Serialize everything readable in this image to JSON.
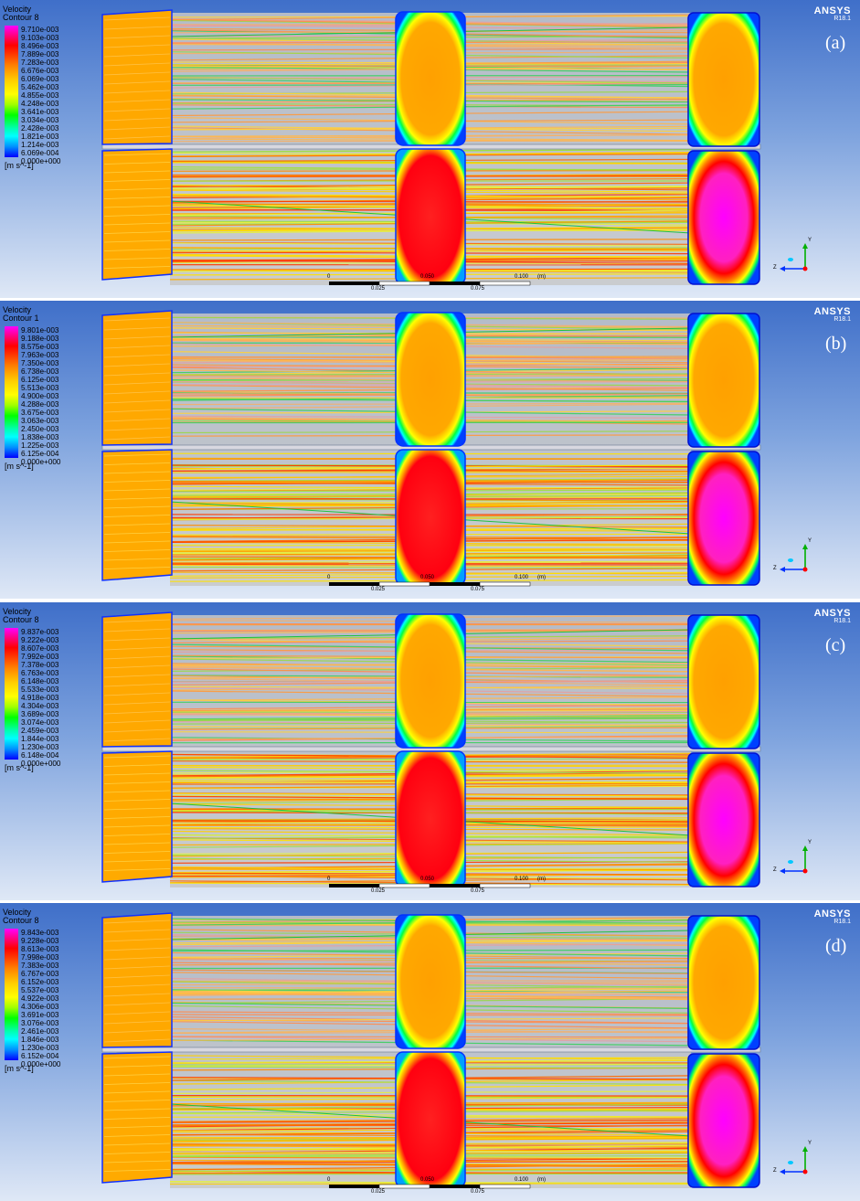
{
  "figure": {
    "brand": "ANSYS",
    "version": "R18.1",
    "panels": [
      {
        "label": "(a)",
        "legend_title": "Velocity",
        "legend_subtitle": "Contour 8",
        "ticks": [
          "9.710e-003",
          "9.103e-003",
          "8.496e-003",
          "7.889e-003",
          "7.283e-003",
          "6.676e-003",
          "6.069e-003",
          "5.462e-003",
          "4.855e-003",
          "4.248e-003",
          "3.641e-003",
          "3.034e-003",
          "2.428e-003",
          "1.821e-003",
          "1.214e-003",
          "6.069e-004",
          "0.000e+000"
        ],
        "unit": "[m s^-1]"
      },
      {
        "label": "(b)",
        "legend_title": "Velocity",
        "legend_subtitle": "Contour 1",
        "ticks": [
          "9.801e-003",
          "9.188e-003",
          "8.575e-003",
          "7.963e-003",
          "7.350e-003",
          "6.738e-003",
          "6.125e-003",
          "5.513e-003",
          "4.900e-003",
          "4.288e-003",
          "3.675e-003",
          "3.063e-003",
          "2.450e-003",
          "1.838e-003",
          "1.225e-003",
          "6.125e-004",
          "0.000e+000"
        ],
        "unit": "[m s^-1]"
      },
      {
        "label": "(c)",
        "legend_title": "Velocity",
        "legend_subtitle": "Contour 8",
        "ticks": [
          "9.837e-003",
          "9.222e-003",
          "8.607e-003",
          "7.992e-003",
          "7.378e-003",
          "6.763e-003",
          "6.148e-003",
          "5.533e-003",
          "4.918e-003",
          "4.304e-003",
          "3.689e-003",
          "3.074e-003",
          "2.459e-003",
          "1.844e-003",
          "1.230e-003",
          "6.148e-004",
          "0.000e+000"
        ],
        "unit": "[m s^-1]"
      },
      {
        "label": "(d)",
        "legend_title": "Velocity",
        "legend_subtitle": "Contour 8",
        "ticks": [
          "9.843e-003",
          "9.228e-003",
          "8.613e-003",
          "7.998e-003",
          "7.383e-003",
          "6.767e-003",
          "6.152e-003",
          "5.537e-003",
          "4.922e-003",
          "4.306e-003",
          "3.691e-003",
          "3.076e-003",
          "2.461e-003",
          "1.846e-003",
          "1.230e-003",
          "6.152e-004",
          "0.000e+000"
        ],
        "unit": "[m s^-1]"
      }
    ],
    "scale": {
      "top_labels": [
        "0",
        "0.050",
        "0.100",
        "(m)"
      ],
      "bottom_labels": [
        "0.025",
        "0.075"
      ]
    },
    "axes": {
      "x": "X",
      "y": "Y",
      "z": "Z"
    }
  }
}
